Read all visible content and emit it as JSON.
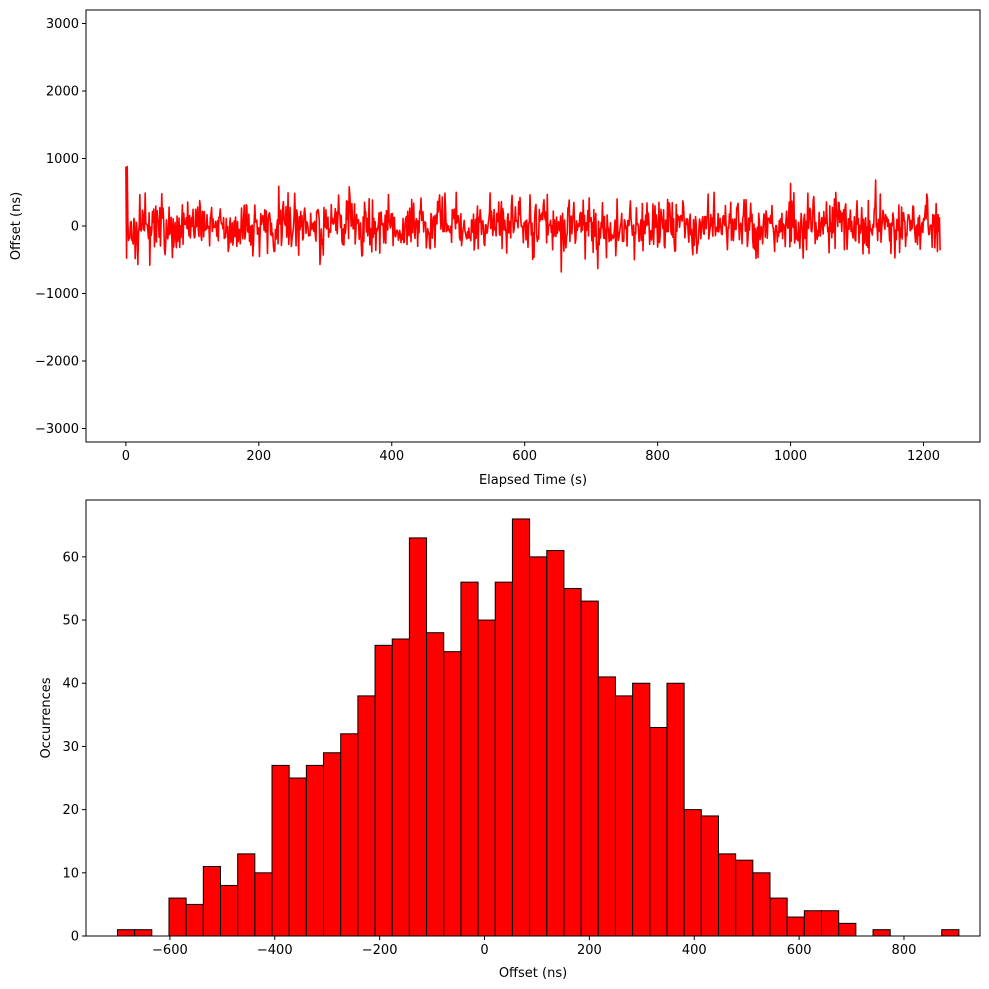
{
  "colors": {
    "line": "#ff0000",
    "bar_fill": "#ff0000",
    "bar_edge": "#000000",
    "axes": "#000000"
  },
  "chart_data": [
    {
      "type": "line",
      "xlabel": "Elapsed Time (s)",
      "ylabel": "Offset (ns)",
      "xlim": [
        -60,
        1285
      ],
      "ylim": [
        -3200,
        3200
      ],
      "xticks": [
        0,
        200,
        400,
        600,
        800,
        1000,
        1200
      ],
      "xtick_labels": [
        "0",
        "200",
        "400",
        "600",
        "800",
        "1000",
        "1200"
      ],
      "yticks": [
        -3000,
        -2000,
        -1000,
        0,
        1000,
        2000,
        3000
      ],
      "ytick_labels": [
        "−3000",
        "−2000",
        "−1000",
        "0",
        "1000",
        "2000",
        "3000"
      ],
      "grid": false,
      "series": [
        {
          "x_range": [
            0,
            1225
          ],
          "n_points": 1225,
          "initial_value": 880,
          "final_value": -360,
          "typical_range": [
            -500,
            500
          ],
          "extremes": [
            {
              "x": 2,
              "y": 880
            },
            {
              "x": 18,
              "y": -570
            },
            {
              "x": 36,
              "y": -580
            },
            {
              "x": 230,
              "y": 590
            },
            {
              "x": 292,
              "y": -570
            },
            {
              "x": 336,
              "y": 580
            },
            {
              "x": 655,
              "y": -680
            },
            {
              "x": 710,
              "y": -630
            },
            {
              "x": 1000,
              "y": 630
            },
            {
              "x": 1128,
              "y": 680
            },
            {
              "x": 1225,
              "y": -360
            }
          ]
        }
      ]
    },
    {
      "type": "bar",
      "subtype": "histogram",
      "xlabel": "Offset (ns)",
      "ylabel": "Occurrences",
      "xlim": [
        -760,
        945
      ],
      "ylim": [
        0,
        69
      ],
      "xticks": [
        -600,
        -400,
        -200,
        0,
        200,
        400,
        600,
        800
      ],
      "xtick_labels": [
        "−600",
        "−400",
        "−200",
        "0",
        "200",
        "400",
        "600",
        "800"
      ],
      "yticks": [
        0,
        10,
        20,
        30,
        40,
        50,
        60
      ],
      "ytick_labels": [
        "0",
        "10",
        "20",
        "30",
        "40",
        "50",
        "60"
      ],
      "grid": false,
      "bin_start": -700,
      "bin_width": 32.75,
      "values": [
        1,
        1,
        0,
        6,
        5,
        11,
        8,
        13,
        10,
        27,
        25,
        27,
        29,
        32,
        38,
        46,
        47,
        63,
        48,
        45,
        56,
        50,
        56,
        66,
        60,
        61,
        55,
        53,
        41,
        38,
        40,
        33,
        40,
        20,
        19,
        13,
        12,
        10,
        6,
        3,
        4,
        4,
        2,
        0,
        1,
        0,
        0,
        0,
        1
      ]
    }
  ]
}
